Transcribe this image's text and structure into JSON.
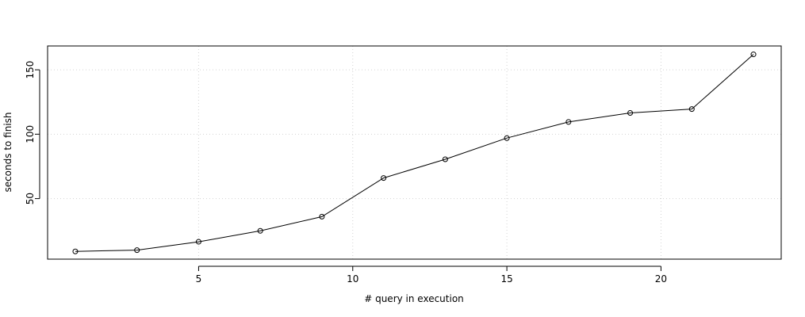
{
  "chart_data": {
    "type": "line",
    "title": "",
    "xlabel": "# query in execution",
    "ylabel": "seconds to finish",
    "x": [
      1,
      3,
      5,
      7,
      9,
      11,
      13,
      15,
      17,
      19,
      21,
      23
    ],
    "series": [
      {
        "values": [
          9,
          10,
          16.5,
          25,
          36,
          66,
          80.5,
          97,
          109.5,
          116.5,
          119.5,
          162
        ]
      }
    ],
    "xlim": [
      0.1,
      23.9
    ],
    "ylim": [
      3,
      168.5
    ],
    "xticks": [
      5,
      10,
      15,
      20
    ],
    "yticks": [
      50,
      100,
      150
    ],
    "grid": true,
    "marker": "open-circle",
    "colors": {
      "line": "#000000",
      "grid": "#d3d3d3",
      "frame": "#000000"
    }
  }
}
